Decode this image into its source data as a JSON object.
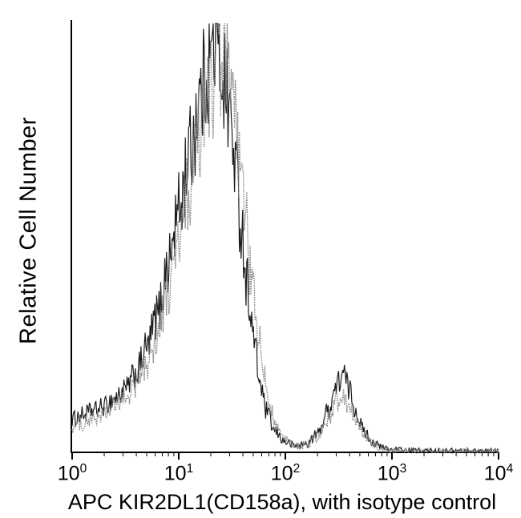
{
  "figure": {
    "background": "#ffffff",
    "axis_color": "#000000",
    "ylabel": "Relative Cell Number",
    "xlabel": "APC KIR2DL1(CD158a), with isotype control"
  },
  "chart_data": {
    "type": "line",
    "subtype": "flow-cytometry-histogram",
    "title": "",
    "xlabel": "APC KIR2DL1(CD158a), with isotype control",
    "ylabel": "Relative Cell Number",
    "x_scale": "log10",
    "x_log_range": [
      0,
      4
    ],
    "x_tick_base": "10",
    "x_tick_exponents": [
      0,
      1,
      2,
      3,
      4
    ],
    "y_axis_ticks": "none",
    "y_units": "relative cell number (unlabeled)",
    "grid": false,
    "legend": "none",
    "series": [
      {
        "name": "APC KIR2DL1(CD158a)",
        "style": "solid",
        "color": "#1c1c1c",
        "main_peak_log10x": 1.34,
        "secondary_peak_log10x": 2.54,
        "points": [
          [
            0.0,
            8
          ],
          [
            0.1,
            9
          ],
          [
            0.2,
            10
          ],
          [
            0.3,
            11
          ],
          [
            0.4,
            13
          ],
          [
            0.5,
            15
          ],
          [
            0.6,
            19
          ],
          [
            0.7,
            25
          ],
          [
            0.8,
            33
          ],
          [
            0.9,
            45
          ],
          [
            1.0,
            58
          ],
          [
            1.1,
            72
          ],
          [
            1.2,
            85
          ],
          [
            1.28,
            94
          ],
          [
            1.34,
            98
          ],
          [
            1.4,
            93
          ],
          [
            1.46,
            85
          ],
          [
            1.52,
            72
          ],
          [
            1.58,
            56
          ],
          [
            1.64,
            41
          ],
          [
            1.7,
            28
          ],
          [
            1.76,
            17
          ],
          [
            1.82,
            10
          ],
          [
            1.9,
            5
          ],
          [
            2.0,
            2.5
          ],
          [
            2.1,
            1.5
          ],
          [
            2.2,
            2
          ],
          [
            2.3,
            4.5
          ],
          [
            2.4,
            10
          ],
          [
            2.48,
            16
          ],
          [
            2.54,
            19
          ],
          [
            2.6,
            15
          ],
          [
            2.66,
            10
          ],
          [
            2.74,
            5
          ],
          [
            2.82,
            2.5
          ],
          [
            2.9,
            1.2
          ],
          [
            3.0,
            0.6
          ],
          [
            3.2,
            0.4
          ],
          [
            3.5,
            0.3
          ],
          [
            4.0,
            0.3
          ]
        ]
      },
      {
        "name": "Isotype control",
        "style": "dotted",
        "color": "#8c8c8c",
        "main_peak_log10x": 1.38,
        "secondary_peak_log10x": 2.54,
        "points": [
          [
            0.0,
            6
          ],
          [
            0.1,
            7
          ],
          [
            0.2,
            8
          ],
          [
            0.3,
            9
          ],
          [
            0.4,
            11
          ],
          [
            0.5,
            13
          ],
          [
            0.6,
            16
          ],
          [
            0.7,
            21
          ],
          [
            0.8,
            28
          ],
          [
            0.9,
            38
          ],
          [
            1.0,
            50
          ],
          [
            1.1,
            63
          ],
          [
            1.2,
            77
          ],
          [
            1.3,
            88
          ],
          [
            1.38,
            95
          ],
          [
            1.44,
            92
          ],
          [
            1.5,
            84
          ],
          [
            1.56,
            72
          ],
          [
            1.62,
            57
          ],
          [
            1.68,
            42
          ],
          [
            1.74,
            29
          ],
          [
            1.8,
            18
          ],
          [
            1.86,
            11
          ],
          [
            1.92,
            6
          ],
          [
            2.0,
            3
          ],
          [
            2.1,
            1.5
          ],
          [
            2.2,
            1.8
          ],
          [
            2.3,
            3.5
          ],
          [
            2.4,
            8
          ],
          [
            2.48,
            12
          ],
          [
            2.54,
            14
          ],
          [
            2.6,
            11
          ],
          [
            2.66,
            7.5
          ],
          [
            2.74,
            4
          ],
          [
            2.82,
            2
          ],
          [
            2.9,
            1
          ],
          [
            3.0,
            0.5
          ],
          [
            3.2,
            0.3
          ],
          [
            3.5,
            0.25
          ],
          [
            4.0,
            0.25
          ]
        ]
      }
    ]
  }
}
